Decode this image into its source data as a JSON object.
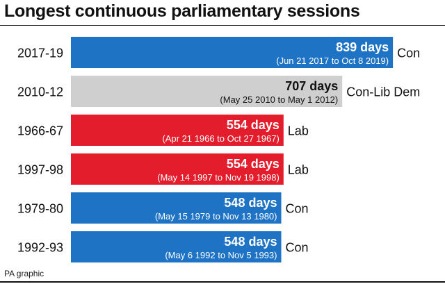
{
  "title": "Longest continuous parliamentary sessions",
  "source": "PA graphic",
  "colors": {
    "Con": "#1f73c4",
    "Lab": "#e31d2c",
    "Con-Lib Dem": "#cfcfcf",
    "text_on_dark": "#ffffff",
    "text_on_light": "#111111"
  },
  "chart_data": {
    "type": "bar",
    "orientation": "horizontal",
    "value_unit": "days",
    "categories": [
      "2017-19",
      "2010-12",
      "1966-67",
      "1997-98",
      "1979-80",
      "1992-93"
    ],
    "values": [
      839,
      707,
      554,
      554,
      548,
      548
    ],
    "value_labels": [
      "839 days",
      "707 days",
      "554 days",
      "554 days",
      "548 days",
      "548 days"
    ],
    "date_ranges": [
      "(Jun 21 2017 to Oct 8 2019)",
      "(May 25 2010 to May 1 2012)",
      "(Apr 21 1966 to Oct 27 1967)",
      "(May 14 1997 to Nov 19 1998)",
      "(May 15 1979 to Nov 13 1980)",
      "(May 6 1992 to Nov 5 1993)"
    ],
    "parties": [
      "Con",
      "Con-Lib Dem",
      "Lab",
      "Lab",
      "Con",
      "Con"
    ]
  }
}
